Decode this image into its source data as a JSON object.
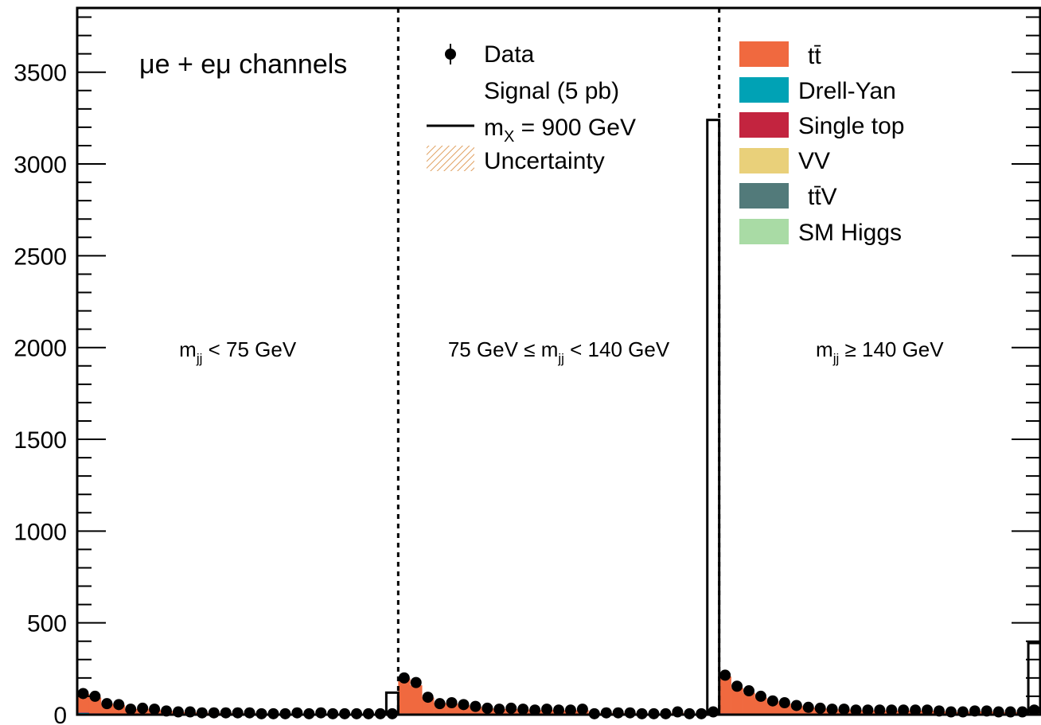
{
  "chart_data": {
    "type": "bar",
    "ylim": [
      0,
      3850
    ],
    "yticks": [
      0,
      500,
      1000,
      1500,
      2000,
      2500,
      3000,
      3500
    ],
    "ytick_labels": [
      "0",
      "500",
      "1000",
      "1500",
      "2000",
      "2500",
      "3000",
      "3500"
    ],
    "grid": false,
    "n_bins": 81,
    "regions": [
      {
        "label_pre": "m",
        "label_sub": "jj",
        "label_post": " < 75 GeV"
      },
      {
        "label_pre": "75 GeV ≤ m",
        "label_sub": "jj",
        "label_post": " < 140 GeV"
      },
      {
        "label_pre": "m",
        "label_sub": "jj",
        "label_post": " ≥ 140 GeV"
      }
    ],
    "region_boundaries": [
      27,
      54
    ],
    "channel_label": "μe + eμ channels",
    "colors": {
      "ttbar": "#f0693f",
      "drell_yan": "#00a2b5",
      "single_top": "#c3243f",
      "vv": "#e9d07a",
      "ttv": "#527a7a",
      "sm_higgs": "#a9dba5",
      "uncertainty": "#e0a060"
    },
    "legend": [
      {
        "key": "data",
        "label": "Data"
      },
      {
        "key": "signal",
        "label": "Signal (5 pb)"
      },
      {
        "key": "signal_mass",
        "label": "m",
        "sub": "X",
        "post": " = 900 GeV"
      },
      {
        "key": "uncertainty",
        "label": "Uncertainty"
      },
      {
        "key": "ttbar",
        "label": "tt̄"
      },
      {
        "key": "drell_yan",
        "label": "Drell-Yan"
      },
      {
        "key": "single_top",
        "label": "Single top"
      },
      {
        "key": "vv",
        "label": "VV"
      },
      {
        "key": "ttv",
        "label": "tt̄V"
      },
      {
        "key": "sm_higgs",
        "label": "SM Higgs"
      }
    ],
    "series": [
      {
        "name": "Data",
        "values": [
          115,
          100,
          60,
          55,
          30,
          35,
          30,
          20,
          15,
          15,
          10,
          10,
          10,
          10,
          10,
          5,
          5,
          5,
          10,
          5,
          10,
          5,
          5,
          5,
          5,
          5,
          5,
          200,
          175,
          95,
          60,
          65,
          55,
          45,
          35,
          30,
          35,
          30,
          25,
          30,
          25,
          25,
          30,
          5,
          10,
          10,
          10,
          5,
          5,
          5,
          15,
          5,
          5,
          15,
          215,
          155,
          130,
          100,
          75,
          65,
          50,
          40,
          35,
          30,
          30,
          25,
          25,
          25,
          25,
          25,
          25,
          25,
          20,
          15,
          15,
          20,
          20,
          15,
          15,
          15,
          25
        ]
      },
      {
        "name": "tt̄",
        "values": [
          100,
          85,
          55,
          50,
          28,
          30,
          25,
          18,
          14,
          12,
          10,
          9,
          9,
          8,
          8,
          6,
          6,
          5,
          6,
          5,
          6,
          5,
          4,
          4,
          4,
          4,
          4,
          190,
          155,
          90,
          60,
          58,
          50,
          42,
          33,
          30,
          30,
          27,
          25,
          27,
          24,
          23,
          25,
          8,
          9,
          9,
          8,
          6,
          6,
          5,
          10,
          5,
          5,
          8,
          200,
          140,
          115,
          90,
          70,
          60,
          48,
          38,
          33,
          28,
          27,
          24,
          23,
          23,
          22,
          22,
          22,
          22,
          18,
          14,
          14,
          17,
          17,
          13,
          13,
          13,
          20
        ]
      },
      {
        "name": "Drell-Yan",
        "values": [
          10,
          6,
          3,
          2,
          1,
          1,
          1,
          1,
          0,
          0,
          0,
          0,
          0,
          0,
          0,
          0,
          0,
          0,
          0,
          0,
          0,
          0,
          0,
          0,
          0,
          0,
          0,
          3,
          2,
          1,
          1,
          1,
          0,
          0,
          0,
          0,
          0,
          0,
          0,
          0,
          0,
          0,
          0,
          0,
          0,
          0,
          0,
          0,
          0,
          0,
          0,
          0,
          0,
          0,
          3,
          2,
          1,
          1,
          1,
          0,
          0,
          0,
          0,
          0,
          0,
          0,
          0,
          0,
          0,
          0,
          0,
          0,
          0,
          0,
          0,
          0,
          0,
          0,
          0,
          0,
          0
        ]
      },
      {
        "name": "Single top",
        "values": [
          3,
          2,
          2,
          1,
          1,
          1,
          1,
          1,
          1,
          1,
          0,
          0,
          0,
          0,
          0,
          0,
          0,
          0,
          0,
          0,
          0,
          0,
          0,
          0,
          0,
          0,
          0,
          4,
          3,
          2,
          2,
          1,
          1,
          1,
          1,
          1,
          1,
          1,
          0,
          0,
          0,
          0,
          0,
          0,
          0,
          0,
          0,
          0,
          0,
          0,
          0,
          0,
          0,
          0,
          5,
          4,
          3,
          2,
          2,
          1,
          1,
          1,
          1,
          1,
          1,
          0,
          0,
          0,
          0,
          0,
          0,
          0,
          0,
          0,
          0,
          0,
          0,
          0,
          0,
          0,
          0
        ]
      },
      {
        "name": "Signal (5 pb)",
        "values": [
          0,
          0,
          0,
          0,
          0,
          0,
          0,
          0,
          0,
          0,
          0,
          0,
          0,
          0,
          0,
          0,
          0,
          0,
          0,
          0,
          0,
          0,
          0,
          0,
          0,
          0,
          120,
          0,
          0,
          0,
          0,
          0,
          0,
          0,
          0,
          0,
          0,
          0,
          0,
          0,
          0,
          0,
          0,
          0,
          0,
          0,
          0,
          0,
          0,
          0,
          0,
          0,
          0,
          3240,
          0,
          0,
          0,
          0,
          0,
          0,
          0,
          0,
          0,
          0,
          0,
          0,
          0,
          0,
          0,
          0,
          0,
          0,
          0,
          0,
          0,
          0,
          0,
          0,
          0,
          0,
          390
        ]
      }
    ]
  }
}
